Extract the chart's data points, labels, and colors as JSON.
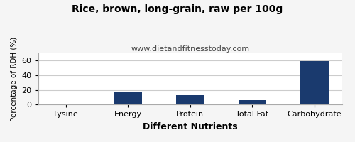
{
  "title": "Rice, brown, long-grain, raw per 100g",
  "subtitle": "www.dietandfitnesstoday.com",
  "xlabel": "Different Nutrients",
  "ylabel": "Percentage of RDH (%)",
  "categories": [
    "Lysine",
    "Energy",
    "Protein",
    "Total Fat",
    "Carbohydrate"
  ],
  "values": [
    0,
    18,
    13,
    6,
    59
  ],
  "bar_color": "#1a3a6e",
  "ylim": [
    0,
    70
  ],
  "yticks": [
    0,
    20,
    40,
    60
  ],
  "background_color": "#f5f5f5",
  "plot_bg_color": "#ffffff",
  "title_fontsize": 10,
  "subtitle_fontsize": 8,
  "xlabel_fontsize": 9,
  "ylabel_fontsize": 7.5,
  "tick_fontsize": 8,
  "border_color": "#aaaaaa"
}
